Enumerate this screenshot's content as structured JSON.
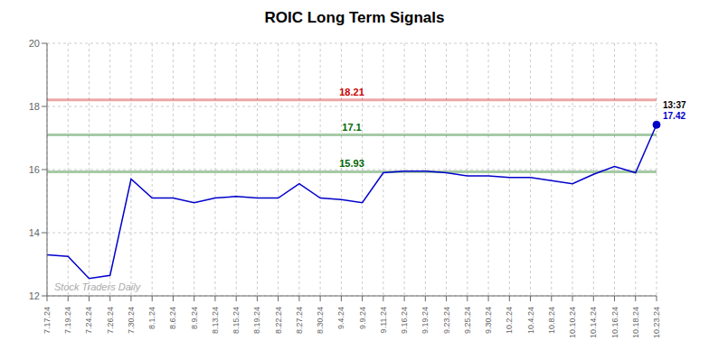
{
  "chart_data": {
    "type": "line",
    "title": "ROIC Long Term Signals",
    "categories": [
      "7.17.24",
      "7.19.24",
      "7.24.24",
      "7.26.24",
      "7.30.24",
      "8.1.24",
      "8.6.24",
      "8.9.24",
      "8.13.24",
      "8.15.24",
      "8.19.24",
      "8.22.24",
      "8.27.24",
      "8.30.24",
      "9.4.24",
      "9.9.24",
      "9.11.24",
      "9.16.24",
      "9.19.24",
      "9.23.24",
      "9.25.24",
      "9.30.24",
      "10.2.24",
      "10.4.24",
      "10.8.24",
      "10.10.24",
      "10.14.24",
      "10.16.24",
      "10.18.24",
      "10.23.24"
    ],
    "values": [
      13.3,
      13.25,
      12.55,
      12.65,
      15.7,
      15.1,
      15.1,
      14.95,
      15.1,
      15.15,
      15.1,
      15.1,
      15.55,
      15.1,
      15.05,
      14.95,
      15.9,
      15.95,
      15.95,
      15.9,
      15.8,
      15.8,
      15.75,
      15.75,
      15.65,
      15.55,
      15.85,
      16.1,
      15.9,
      17.42
    ],
    "color": "#0000cc",
    "ylim": [
      12,
      20
    ],
    "yticks": [
      12,
      14,
      16,
      18,
      20
    ],
    "grid": true,
    "reference_lines": [
      {
        "value": 18.21,
        "label": "18.21",
        "color": "#cc0000"
      },
      {
        "value": 17.1,
        "label": "17.1",
        "color": "#006600"
      },
      {
        "value": 15.93,
        "label": "15.93",
        "color": "#006600"
      }
    ],
    "last_point_labels": [
      {
        "text": "13:37",
        "color": "#000000"
      },
      {
        "text": "17.42",
        "color": "#0000cc"
      }
    ],
    "watermark": "Stock Traders Daily"
  }
}
